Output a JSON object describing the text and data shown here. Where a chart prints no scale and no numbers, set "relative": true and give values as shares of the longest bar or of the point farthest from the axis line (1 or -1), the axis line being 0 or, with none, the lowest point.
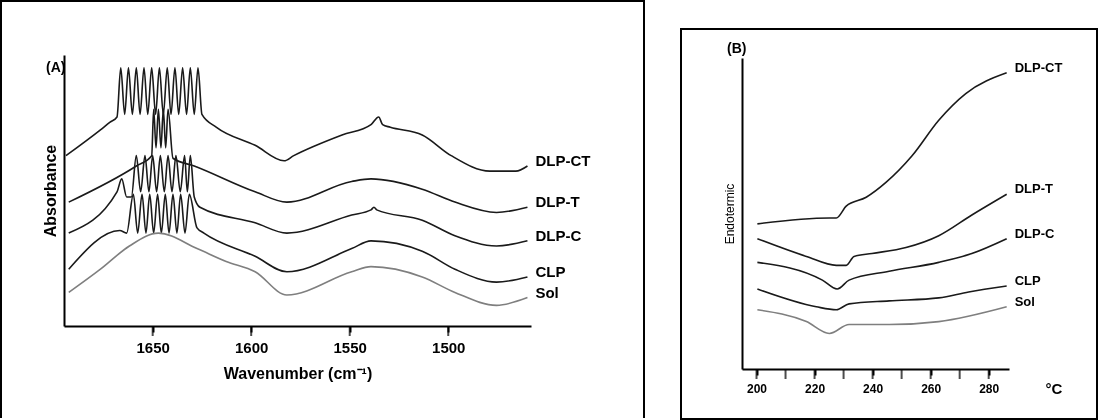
{
  "chart_data": [
    {
      "type": "line",
      "title": "(A)",
      "xlabel": "Wavenumber (cm⁻¹)",
      "ylabel": "Absorbance",
      "relative": true,
      "tick_labels": "x",
      "xlim": [
        1695,
        1458
      ],
      "xticks": [
        1650,
        1600,
        1550,
        1500
      ],
      "series": [
        {
          "name": "DLP-CT",
          "color": "#1a1a1a",
          "x": [
            1694,
            1676.5,
            1671.6,
            1668.1,
            1666.2,
            1664.2,
            1662.3,
            1660.3,
            1658.3,
            1656.4,
            1654.4,
            1652.5,
            1650.5,
            1648.5,
            1646.6,
            1644.6,
            1642.6,
            1640.7,
            1638.7,
            1636.8,
            1634.8,
            1632.8,
            1630.9,
            1628.9,
            1627.0,
            1625.0,
            1617.6,
            1598,
            1583.3,
            1578.4,
            1553.9,
            1539.2,
            1535.3,
            1533.3,
            1529.4,
            1513.2,
            1498.5,
            1478.9,
            1465.7,
            1459.8
          ],
          "values": [
            0.66,
            0.76,
            0.79,
            0.81,
            1,
            0.82,
            1,
            0.82,
            1,
            0.82,
            1,
            0.82,
            1,
            0.82,
            1,
            0.82,
            1,
            0.82,
            1,
            0.82,
            1,
            0.82,
            1,
            0.82,
            1,
            0.82,
            0.77,
            0.7,
            0.64,
            0.66,
            0.74,
            0.78,
            0.81,
            0.78,
            0.77,
            0.74,
            0.66,
            0.6,
            0.6,
            0.62
          ]
        },
        {
          "name": "DLP-T",
          "color": "#1a1a1a",
          "x": [
            1692.6,
            1658.3,
            1650.5,
            1649.5,
            1648.3,
            1647.1,
            1645.8,
            1644.6,
            1643.4,
            1642.2,
            1639.7,
            1628.9,
            1598,
            1581.9,
            1549.0,
            1539.2,
            1513.2,
            1496.6,
            1475.5,
            1459.8
          ],
          "values": [
            0.48,
            0.62,
            0.66,
            0.84,
            0.69,
            0.84,
            0.69,
            0.84,
            0.69,
            0.84,
            0.65,
            0.62,
            0.52,
            0.48,
            0.56,
            0.57,
            0.53,
            0.48,
            0.44,
            0.46
          ]
        },
        {
          "name": "DLP-C",
          "color": "#1a1a1a",
          "x": [
            1692.6,
            1668.1,
            1665.7,
            1663.2,
            1660.8,
            1658.3,
            1656.1,
            1653.9,
            1651.9,
            1650,
            1648,
            1646.1,
            1644.1,
            1642.2,
            1640.2,
            1638.2,
            1636,
            1633.8,
            1632.4,
            1630.9,
            1628.9,
            1626,
            1598,
            1581.9,
            1549,
            1539.2,
            1537.7,
            1536.3,
            1513.2,
            1496.6,
            1475.5,
            1459.8
          ],
          "values": [
            0.36,
            0.52,
            0.57,
            0.5,
            0.5,
            0.66,
            0.52,
            0.66,
            0.52,
            0.66,
            0.52,
            0.66,
            0.52,
            0.66,
            0.52,
            0.66,
            0.52,
            0.66,
            0.52,
            0.66,
            0.5,
            0.46,
            0.4,
            0.36,
            0.43,
            0.45,
            0.46,
            0.45,
            0.41,
            0.35,
            0.31,
            0.33
          ]
        },
        {
          "name": "CLP",
          "color": "#1a1a1a",
          "x": [
            1692.6,
            1666.7,
            1663.2,
            1659.8,
            1657.6,
            1655.4,
            1653.4,
            1651.5,
            1649.5,
            1647.5,
            1645.6,
            1643.6,
            1641.7,
            1639.7,
            1637.7,
            1635.8,
            1633.6,
            1631.4,
            1627.5,
            1624.0,
            1598,
            1581.9,
            1549,
            1539.2,
            1513.2,
            1496.6,
            1475.5,
            1459.8
          ],
          "values": [
            0.22,
            0.37,
            0.36,
            0.51,
            0.36,
            0.51,
            0.36,
            0.51,
            0.36,
            0.51,
            0.36,
            0.51,
            0.36,
            0.51,
            0.36,
            0.51,
            0.36,
            0.51,
            0.38,
            0.36,
            0.27,
            0.21,
            0.3,
            0.33,
            0.29,
            0.22,
            0.17,
            0.19
          ]
        },
        {
          "name": "Sol",
          "color": "#7f7f7f",
          "x": [
            1692.6,
            1676.5,
            1661.8,
            1647.1,
            1627.5,
            1612.7,
            1598,
            1581.9,
            1549,
            1539.2,
            1513.2,
            1496.6,
            1475.5,
            1459.8
          ],
          "values": [
            0.13,
            0.22,
            0.31,
            0.36,
            0.3,
            0.25,
            0.21,
            0.12,
            0.21,
            0.23,
            0.19,
            0.13,
            0.08,
            0.11
          ]
        }
      ]
    },
    {
      "type": "line",
      "title": "(B)",
      "xlabel": "°C",
      "ylabel": "Endotermic",
      "relative": true,
      "tick_labels": "x",
      "xlim": [
        195,
        287
      ],
      "xticks": [
        200,
        {
          "value": 210,
          "label": null
        },
        220,
        {
          "value": 230,
          "label": null
        },
        240,
        {
          "value": 250,
          "label": null
        },
        260,
        {
          "value": 270,
          "label": null
        },
        280
      ],
      "series": [
        {
          "name": "DLP-CT",
          "color": "#1a1a1a",
          "x": [
            200.3,
            225.1,
            227.5,
            230.9,
            237.8,
            244.6,
            253.6,
            262.8,
            272.1,
            286.2
          ],
          "values": [
            0.49,
            0.51,
            0.51,
            0.55,
            0.58,
            0.63,
            0.72,
            0.84,
            0.93,
            1
          ]
        },
        {
          "name": "DLP-T",
          "color": "#1a1a1a",
          "x": [
            200.3,
            217.2,
            227.5,
            230.9,
            233.6,
            239.8,
            251.5,
            262.8,
            274.2,
            286.2
          ],
          "values": [
            0.44,
            0.38,
            0.35,
            0.35,
            0.38,
            0.39,
            0.41,
            0.45,
            0.52,
            0.59
          ]
        },
        {
          "name": "DLP-C",
          "color": "#1a1a1a",
          "x": [
            200.3,
            222.7,
            227.8,
            231.9,
            245.7,
            262.8,
            274.2,
            286.2
          ],
          "values": [
            0.36,
            0.3,
            0.27,
            0.3,
            0.33,
            0.36,
            0.39,
            0.44
          ]
        },
        {
          "name": "CLP",
          "color": "#1a1a1a",
          "x": [
            200.3,
            220.6,
            227.5,
            231.9,
            245.7,
            262.8,
            273.1,
            286.2
          ],
          "values": [
            0.27,
            0.21,
            0.2,
            0.22,
            0.23,
            0.24,
            0.26,
            0.28
          ]
        },
        {
          "name": "Sol",
          "color": "#7f7f7f",
          "x": [
            200.3,
            217.2,
            225.1,
            231.9,
            245.7,
            262.8,
            286.2
          ],
          "values": [
            0.2,
            0.16,
            0.12,
            0.15,
            0.15,
            0.16,
            0.21
          ]
        }
      ]
    }
  ]
}
